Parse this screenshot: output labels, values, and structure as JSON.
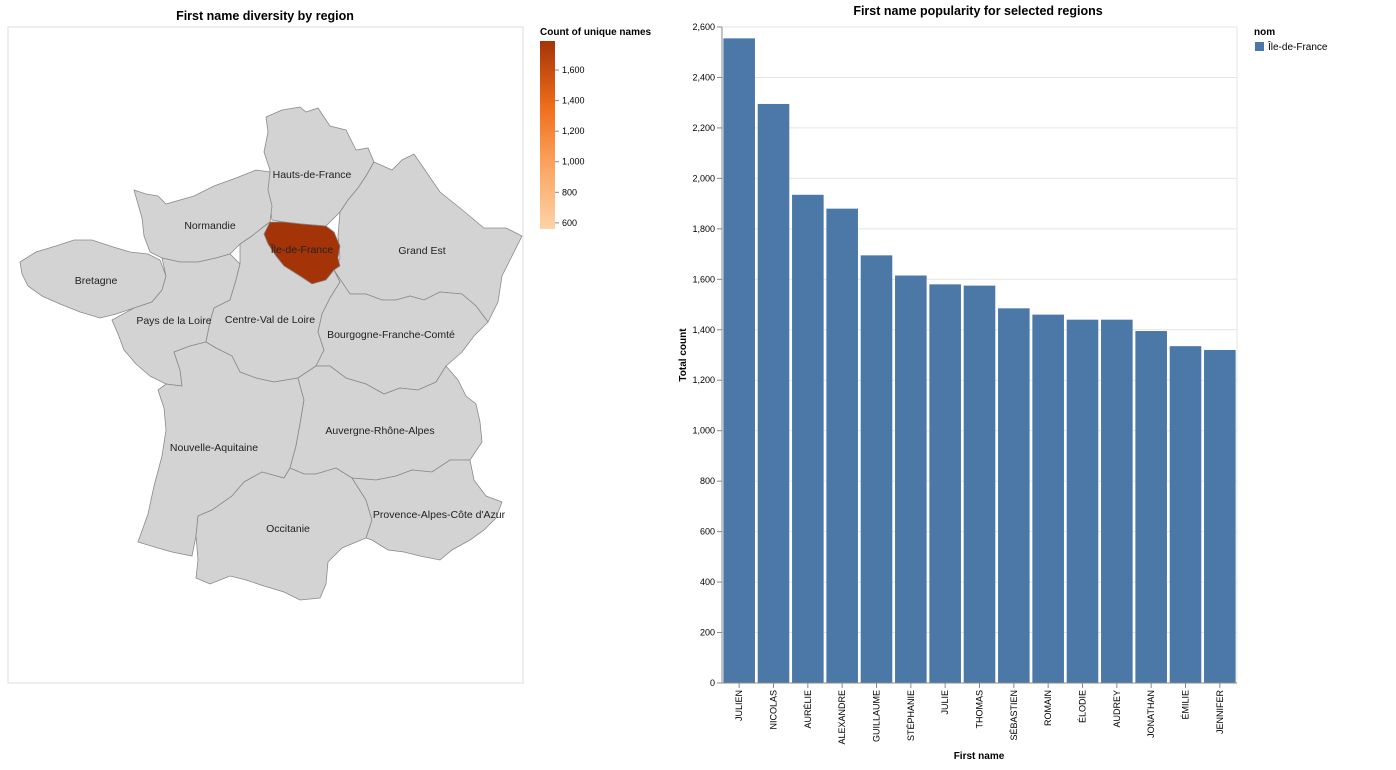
{
  "map": {
    "title": "First name diversity by region",
    "legend_title": "Count of unique names",
    "legend_ticks": [
      600,
      800,
      1000,
      1200,
      1400,
      1600
    ],
    "legend_tick_labels": [
      "600",
      "800",
      "1,000",
      "1,200",
      "1,400",
      "1,600"
    ],
    "legend_range": [
      560,
      1790
    ],
    "default_fill": "#d3d3d3",
    "selected_fill": "#a43408",
    "regions": [
      {
        "name": "Hauts-de-France",
        "selected": false
      },
      {
        "name": "Normandie",
        "selected": false
      },
      {
        "name": "Île-de-France",
        "selected": true
      },
      {
        "name": "Grand Est",
        "selected": false
      },
      {
        "name": "Bretagne",
        "selected": false
      },
      {
        "name": "Pays de la Loire",
        "selected": false
      },
      {
        "name": "Centre-Val de Loire",
        "selected": false
      },
      {
        "name": "Bourgogne-Franche-Comté",
        "selected": false
      },
      {
        "name": "Nouvelle-Aquitaine",
        "selected": false
      },
      {
        "name": "Auvergne-Rhône-Alpes",
        "selected": false
      },
      {
        "name": "Occitanie",
        "selected": false
      },
      {
        "name": "Provence-Alpes-Côte d'Azur",
        "selected": false
      }
    ]
  },
  "chart_data": {
    "type": "bar",
    "title": "First name popularity for selected regions",
    "xlabel": "First name",
    "ylabel": "Total count",
    "ylim": [
      0,
      2600
    ],
    "yticks": [
      0,
      200,
      400,
      600,
      800,
      1000,
      1200,
      1400,
      1600,
      1800,
      2000,
      2200,
      2400,
      2600
    ],
    "ytick_labels": [
      "0",
      "200",
      "400",
      "600",
      "800",
      "1,000",
      "1,200",
      "1,400",
      "1,600",
      "1,800",
      "2,000",
      "2,200",
      "2,400",
      "2,600"
    ],
    "grid": true,
    "legend_placement": "top-right",
    "legend_title": "nom",
    "categories": [
      "JULIEN",
      "NICOLAS",
      "AURÉLIE",
      "ALEXANDRE",
      "GUILLAUME",
      "STÉPHANIE",
      "JULIE",
      "THOMAS",
      "SÉBASTIEN",
      "ROMAIN",
      "ÉLODIE",
      "AUDREY",
      "JONATHAN",
      "ÉMILIE",
      "JENNIFER"
    ],
    "series": [
      {
        "name": "Île-de-France",
        "color": "#4c78a8",
        "values": [
          2555,
          2295,
          1935,
          1880,
          1695,
          1615,
          1580,
          1575,
          1485,
          1460,
          1440,
          1440,
          1395,
          1335,
          1320
        ]
      }
    ]
  }
}
